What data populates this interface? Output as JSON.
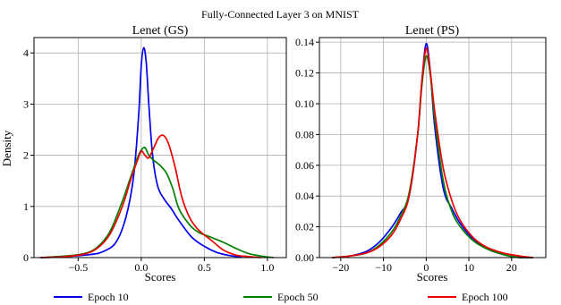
{
  "figure_title": "Fully-Connected Layer 3 on MNIST",
  "legend": [
    {
      "label": "Epoch 10",
      "color": "#0000ee"
    },
    {
      "label": "Epoch 50",
      "color": "#008000"
    },
    {
      "label": "Epoch 100",
      "color": "#ee0000"
    }
  ],
  "chart_data": [
    {
      "type": "line",
      "title": "Lenet (GS)",
      "xlabel": "Scores",
      "ylabel": "Density",
      "xlim": [
        -0.85,
        1.15
      ],
      "ylim": [
        0,
        4.3
      ],
      "xticks": [
        -0.5,
        0.0,
        0.5,
        1.0
      ],
      "xtick_labels": [
        "−0.5",
        "0.0",
        "0.5",
        "1.0"
      ],
      "yticks": [
        0,
        1,
        2,
        3,
        4
      ],
      "ytick_labels": [
        "0",
        "1",
        "2",
        "3",
        "4"
      ],
      "grid": true,
      "series": [
        {
          "name": "Epoch 10",
          "color": "#0000ee",
          "x": [
            -0.8,
            -0.6,
            -0.4,
            -0.3,
            -0.2,
            -0.12,
            -0.06,
            -0.02,
            0.0,
            0.02,
            0.04,
            0.06,
            0.09,
            0.13,
            0.18,
            0.24,
            0.3,
            0.4,
            0.5,
            0.6,
            0.7,
            0.8
          ],
          "y": [
            0.0,
            0.02,
            0.06,
            0.12,
            0.3,
            0.8,
            1.6,
            2.8,
            3.75,
            4.1,
            3.8,
            3.0,
            2.0,
            1.4,
            1.15,
            0.95,
            0.72,
            0.4,
            0.22,
            0.1,
            0.04,
            0.01
          ]
        },
        {
          "name": "Epoch 50",
          "color": "#008000",
          "x": [
            -0.8,
            -0.6,
            -0.45,
            -0.35,
            -0.25,
            -0.15,
            -0.08,
            -0.03,
            0.0,
            0.03,
            0.06,
            0.1,
            0.15,
            0.2,
            0.25,
            0.3,
            0.38,
            0.45,
            0.55,
            0.65,
            0.75,
            0.85,
            0.95,
            1.05
          ],
          "y": [
            0.0,
            0.03,
            0.08,
            0.2,
            0.5,
            1.1,
            1.6,
            1.95,
            2.1,
            2.15,
            2.0,
            1.9,
            1.8,
            1.65,
            1.35,
            0.95,
            0.65,
            0.5,
            0.4,
            0.3,
            0.18,
            0.08,
            0.03,
            0.0
          ]
        },
        {
          "name": "Epoch 100",
          "color": "#ee0000",
          "x": [
            -0.8,
            -0.6,
            -0.45,
            -0.35,
            -0.25,
            -0.15,
            -0.08,
            -0.03,
            0.0,
            0.03,
            0.06,
            0.1,
            0.14,
            0.18,
            0.22,
            0.27,
            0.32,
            0.38,
            0.45,
            0.55,
            0.65,
            0.75,
            0.85,
            0.95
          ],
          "y": [
            0.0,
            0.02,
            0.07,
            0.18,
            0.45,
            1.0,
            1.55,
            1.9,
            2.08,
            2.0,
            1.95,
            2.15,
            2.35,
            2.38,
            2.2,
            1.75,
            1.2,
            0.8,
            0.55,
            0.35,
            0.15,
            0.05,
            0.02,
            0.0
          ]
        }
      ]
    },
    {
      "type": "line",
      "title": "Lenet (PS)",
      "xlabel": "Scores",
      "ylabel": "",
      "xlim": [
        -25,
        28
      ],
      "ylim": [
        0,
        0.143
      ],
      "xticks": [
        -20,
        -10,
        0,
        10,
        20
      ],
      "xtick_labels": [
        "−20",
        "−10",
        "0",
        "10",
        "20"
      ],
      "yticks": [
        0.0,
        0.02,
        0.04,
        0.06,
        0.08,
        0.1,
        0.12,
        0.14
      ],
      "ytick_labels": [
        "0.00",
        "0.02",
        "0.04",
        "0.06",
        "0.08",
        "0.10",
        "0.12",
        "0.14"
      ],
      "grid": true,
      "series": [
        {
          "name": "Epoch 10",
          "color": "#0000ee",
          "x": [
            -22,
            -18,
            -14,
            -11,
            -8,
            -6,
            -4,
            -2,
            -1,
            0,
            1,
            2,
            4,
            6,
            8,
            11,
            14,
            18,
            22,
            25
          ],
          "y": [
            0.0,
            0.001,
            0.004,
            0.01,
            0.02,
            0.029,
            0.04,
            0.08,
            0.115,
            0.139,
            0.12,
            0.085,
            0.045,
            0.032,
            0.022,
            0.012,
            0.006,
            0.002,
            0.0,
            0.0
          ]
        },
        {
          "name": "Epoch 50",
          "color": "#008000",
          "x": [
            -22,
            -18,
            -14,
            -11,
            -8,
            -6,
            -4,
            -2,
            -1,
            0,
            1,
            2,
            4,
            6,
            8,
            11,
            14,
            18,
            22,
            25
          ],
          "y": [
            0.0,
            0.001,
            0.003,
            0.008,
            0.017,
            0.027,
            0.042,
            0.08,
            0.112,
            0.131,
            0.118,
            0.09,
            0.05,
            0.03,
            0.02,
            0.011,
            0.006,
            0.002,
            0.0,
            0.0
          ]
        },
        {
          "name": "Epoch 100",
          "color": "#ee0000",
          "x": [
            -22,
            -18,
            -14,
            -11,
            -8,
            -6,
            -4,
            -2,
            -1,
            0,
            1,
            2,
            4,
            6,
            8,
            11,
            14,
            18,
            22,
            25
          ],
          "y": [
            0.0,
            0.001,
            0.003,
            0.007,
            0.015,
            0.025,
            0.04,
            0.08,
            0.115,
            0.136,
            0.12,
            0.095,
            0.058,
            0.037,
            0.024,
            0.013,
            0.007,
            0.003,
            0.001,
            0.0
          ]
        }
      ]
    }
  ]
}
